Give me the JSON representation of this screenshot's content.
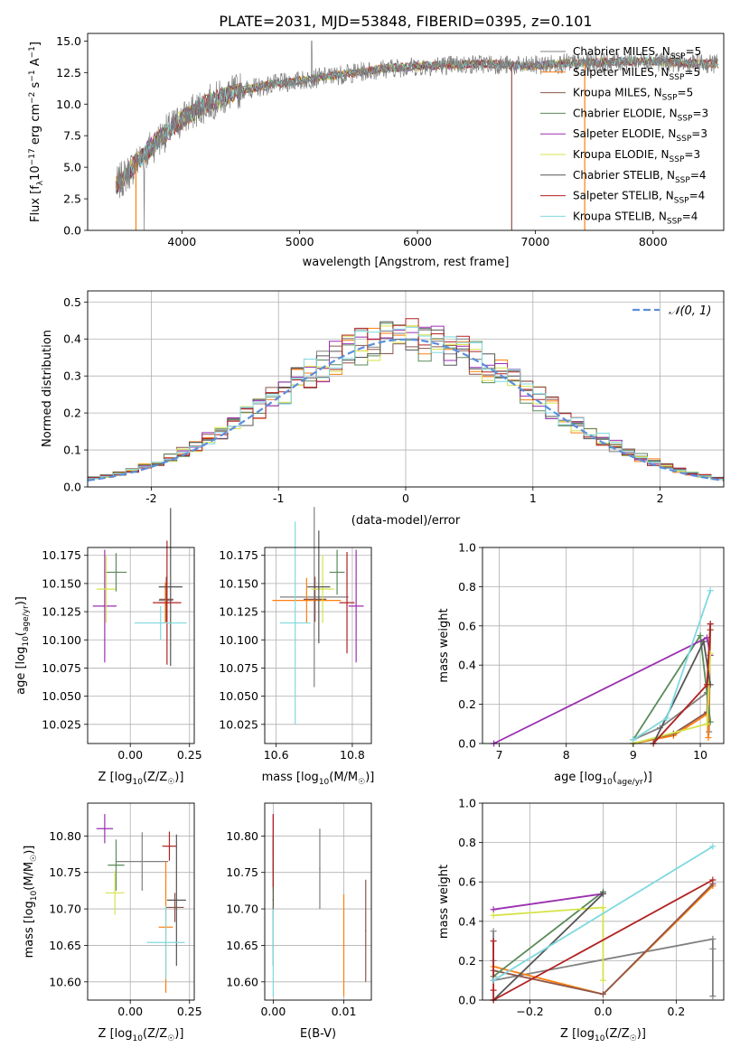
{
  "figure_title": "PLATE=2031, MJD=53848, FIBERID=0395, z=0.101",
  "colors": {
    "models": [
      "#808080",
      "#ff7f0e",
      "#8c564b",
      "#5a8a5a",
      "#9b2fb0",
      "#d6e34a",
      "#555555",
      "#b22222",
      "#7fd9df"
    ],
    "normal": "#5b8fdc",
    "grid": "#b0b0b0"
  },
  "legend_spectrum": [
    {
      "name": "Chabrier MILES, N",
      "sub": "SSP",
      "tail": "=5"
    },
    {
      "name": "Salpeter MILES, N",
      "sub": "SSP",
      "tail": "=5"
    },
    {
      "name": "Kroupa MILES, N",
      "sub": "SSP",
      "tail": "=5"
    },
    {
      "name": "Chabrier ELODIE, N",
      "sub": "SSP",
      "tail": "=3"
    },
    {
      "name": "Salpeter ELODIE, N",
      "sub": "SSP",
      "tail": "=3"
    },
    {
      "name": "Kroupa ELODIE, N",
      "sub": "SSP",
      "tail": "=3"
    },
    {
      "name": "Chabrier STELIB, N",
      "sub": "SSP",
      "tail": "=4"
    },
    {
      "name": "Salpeter STELIB, N",
      "sub": "SSP",
      "tail": "=4"
    },
    {
      "name": "Kroupa STELIB, N",
      "sub": "SSP",
      "tail": "=4"
    }
  ],
  "legend_hist": "𝒩(0, 1)",
  "chart_data": [
    {
      "id": "spectrum",
      "type": "line",
      "ylabel_parts": [
        "Flux [f",
        "λ",
        "10",
        "−17",
        " erg cm",
        "−2",
        " s",
        "−1",
        " A",
        "−1",
        "]"
      ],
      "xlabel": "wavelength [Angstrom, rest frame]",
      "xlim": [
        3200,
        8600
      ],
      "ylim": [
        0,
        15.6
      ],
      "xticks": [
        4000,
        5000,
        6000,
        7000,
        8000
      ],
      "yticks": [
        0.0,
        2.5,
        5.0,
        7.5,
        10.0,
        12.5,
        15.0
      ],
      "continuum_x": [
        3450,
        3600,
        3800,
        4000,
        4200,
        4500,
        4800,
        5100,
        5400,
        5700,
        6000,
        6300,
        6600,
        6900,
        7200,
        7500,
        7800,
        8000,
        8200,
        8400
      ],
      "continuum_y": [
        3.6,
        5.2,
        7.2,
        8.8,
        10.0,
        11.1,
        11.6,
        12.0,
        12.4,
        12.8,
        13.0,
        13.1,
        13.2,
        13.0,
        13.2,
        13.3,
        13.4,
        13.4,
        13.3,
        13.2
      ]
    },
    {
      "id": "residual_hist",
      "type": "histogram",
      "xlabel": "(data-model)/error",
      "ylabel": "Normed distribution",
      "xlim": [
        -2.5,
        2.5
      ],
      "ylim": [
        0,
        0.53
      ],
      "xticks": [
        -2,
        -1,
        0,
        1,
        2
      ],
      "yticks": [
        0.0,
        0.1,
        0.2,
        0.3,
        0.4,
        0.5
      ],
      "bin_width": 0.1
    },
    {
      "id": "age_vs_Z",
      "type": "scatter",
      "xlabel_parts": [
        "Z [log",
        "10",
        "(Z/Z",
        "☉",
        ")]"
      ],
      "ylabel_parts": [
        "age  [log",
        "10",
        "(",
        "age/yr",
        ")]"
      ],
      "xlim": [
        -0.18,
        0.27
      ],
      "ylim": [
        10.008,
        10.182
      ],
      "xticks": [
        0.0,
        0.25
      ],
      "yticks": [
        10.025,
        10.05,
        10.075,
        10.1,
        10.125,
        10.15,
        10.175
      ],
      "points": [
        {
          "x": 0.15,
          "y": 10.135,
          "ex": 0.03,
          "ey": 0.015
        },
        {
          "x": 0.148,
          "y": 10.133,
          "ex": 0.025,
          "ey": 0.018
        },
        {
          "x": 0.152,
          "y": 10.136,
          "ex": 0.03,
          "ey": 0.02
        },
        {
          "x": -0.06,
          "y": 10.16,
          "ex": 0.045,
          "ey": 0.017
        },
        {
          "x": -0.108,
          "y": 10.13,
          "ex": 0.05,
          "ey": 0.05
        },
        {
          "x": -0.102,
          "y": 10.145,
          "ex": 0.04,
          "ey": 0.03
        },
        {
          "x": 0.17,
          "y": 10.147,
          "ex": 0.05,
          "ey": 0.07
        },
        {
          "x": 0.155,
          "y": 10.133,
          "ex": 0.06,
          "ey": 0.055
        },
        {
          "x": 0.128,
          "y": 10.115,
          "ex": 0.11,
          "ey": 0.015
        }
      ]
    },
    {
      "id": "age_vs_mass",
      "type": "scatter",
      "xlabel_parts": [
        "mass [log",
        "10",
        "(M/M",
        "☉",
        ")]"
      ],
      "xlim": [
        10.57,
        10.85
      ],
      "ylim": [
        10.008,
        10.182
      ],
      "xticks": [
        10.6,
        10.8
      ],
      "yticks": [
        10.025,
        10.05,
        10.075,
        10.1,
        10.125,
        10.15,
        10.175
      ],
      "points": [
        {
          "x": 10.7,
          "y": 10.138,
          "ex": 0.09,
          "ey": 0.08
        },
        {
          "x": 10.68,
          "y": 10.135,
          "ex": 0.09,
          "ey": 0.02
        },
        {
          "x": 10.702,
          "y": 10.136,
          "ex": 0.03,
          "ey": 0.02
        },
        {
          "x": 10.76,
          "y": 10.16,
          "ex": 0.02,
          "ey": 0.02
        },
        {
          "x": 10.81,
          "y": 10.13,
          "ex": 0.02,
          "ey": 0.05
        },
        {
          "x": 10.722,
          "y": 10.145,
          "ex": 0.03,
          "ey": 0.03
        },
        {
          "x": 10.712,
          "y": 10.147,
          "ex": 0.03,
          "ey": 0.05
        },
        {
          "x": 10.786,
          "y": 10.133,
          "ex": 0.02,
          "ey": 0.045
        },
        {
          "x": 10.65,
          "y": 10.115,
          "ex": 0.04,
          "ey": 0.09
        }
      ]
    },
    {
      "id": "weight_vs_age",
      "type": "line",
      "xlabel_parts": [
        "age  [log",
        "10",
        "(",
        "age/yr",
        ")]"
      ],
      "ylabel": "mass weight",
      "xlim": [
        6.75,
        10.35
      ],
      "ylim": [
        0,
        1
      ],
      "xticks": [
        7,
        8,
        9,
        10
      ],
      "yticks": [
        0.0,
        0.2,
        0.4,
        0.6,
        0.8,
        1.0
      ],
      "series": [
        {
          "x": [
            9.0,
            9.4,
            10.1,
            10.13,
            10.15
          ],
          "y": [
            0.02,
            0.08,
            0.26,
            0.06,
            0.61
          ]
        },
        {
          "x": [
            9.0,
            9.6,
            10.1,
            10.12,
            10.15
          ],
          "y": [
            0.0,
            0.04,
            0.15,
            0.03,
            0.58
          ]
        },
        {
          "x": [
            9.0,
            9.6,
            10.1,
            10.15
          ],
          "y": [
            0.0,
            0.05,
            0.16,
            0.58
          ]
        },
        {
          "x": [
            9.0,
            10.0,
            10.15
          ],
          "y": [
            0.02,
            0.55,
            0.11
          ]
        },
        {
          "x": [
            6.92,
            10.1,
            10.15
          ],
          "y": [
            0.0,
            0.54,
            0.45
          ]
        },
        {
          "x": [
            9.0,
            10.1,
            10.15
          ],
          "y": [
            0.0,
            0.1,
            0.46
          ]
        },
        {
          "x": [
            9.3,
            10.05,
            10.15
          ],
          "y": [
            0.0,
            0.52,
            0.3
          ]
        },
        {
          "x": [
            9.3,
            10.1,
            10.15
          ],
          "y": [
            0.0,
            0.3,
            0.61
          ]
        },
        {
          "x": [
            9.0,
            9.5,
            10.15
          ],
          "y": [
            0.02,
            0.13,
            0.78
          ]
        }
      ]
    },
    {
      "id": "mass_vs_Z",
      "type": "scatter",
      "xlabel_parts": [
        "Z [log",
        "10",
        "(Z/Z",
        "☉",
        ")]"
      ],
      "ylabel_parts": [
        "mass [log",
        "10",
        "(M/M",
        "☉",
        ")]"
      ],
      "xlim": [
        -0.18,
        0.27
      ],
      "ylim": [
        10.575,
        10.845
      ],
      "xticks": [
        0.0,
        0.25
      ],
      "yticks": [
        10.6,
        10.65,
        10.7,
        10.75,
        10.8
      ],
      "points": [
        {
          "x": 0.05,
          "y": 10.765,
          "ex": 0.11,
          "ey": 0.04
        },
        {
          "x": 0.15,
          "y": 10.675,
          "ex": 0.03,
          "ey": 0.09
        },
        {
          "x": 0.188,
          "y": 10.702,
          "ex": 0.038,
          "ey": 0.02
        },
        {
          "x": -0.06,
          "y": 10.76,
          "ex": 0.035,
          "ey": 0.035
        },
        {
          "x": -0.108,
          "y": 10.81,
          "ex": 0.035,
          "ey": 0.02
        },
        {
          "x": -0.065,
          "y": 10.722,
          "ex": 0.04,
          "ey": 0.03
        },
        {
          "x": 0.195,
          "y": 10.712,
          "ex": 0.04,
          "ey": 0.09
        },
        {
          "x": 0.165,
          "y": 10.786,
          "ex": 0.03,
          "ey": 0.02
        },
        {
          "x": 0.15,
          "y": 10.654,
          "ex": 0.08,
          "ey": 0.05
        }
      ]
    },
    {
      "id": "mass_vs_EBV",
      "type": "scatter",
      "xlabel": "E(B-V)",
      "xlim": [
        -0.0012,
        0.0139
      ],
      "ylim": [
        10.575,
        10.845
      ],
      "xticks": [
        0.0,
        0.01
      ],
      "yticks": [
        10.6,
        10.65,
        10.7,
        10.75,
        10.8
      ],
      "points": [
        {
          "x": 0.0066,
          "y": 10.755,
          "ex": 0,
          "ey": 0.055
        },
        {
          "x": 0.01,
          "y": 10.65,
          "ex": 0,
          "ey": 0.07
        },
        {
          "x": 0.0131,
          "y": 10.67,
          "ex": 0,
          "ey": 0.07
        },
        {
          "x": 0.0,
          "y": 10.76,
          "ex": 0,
          "ey": 0.035
        },
        {
          "x": 0.0,
          "y": 10.79,
          "ex": 0,
          "ey": 0.04
        },
        {
          "x": 0.0,
          "y": 10.72,
          "ex": 0,
          "ey": 0.03
        },
        {
          "x": 0.0,
          "y": 10.712,
          "ex": 0,
          "ey": 0.09
        },
        {
          "x": 0.0,
          "y": 10.78,
          "ex": 0,
          "ey": 0.05
        },
        {
          "x": 0.0,
          "y": 10.64,
          "ex": 0,
          "ey": 0.06
        }
      ]
    },
    {
      "id": "weight_vs_Z",
      "type": "line",
      "xlabel_parts": [
        "Z [log",
        "10",
        "(Z/Z",
        "☉",
        ")]"
      ],
      "ylabel": "mass weight",
      "xlim": [
        -0.33,
        0.33
      ],
      "ylim": [
        0,
        1
      ],
      "xticks": [
        -0.2,
        0.0,
        0.2
      ],
      "yticks": [
        0.0,
        0.2,
        0.4,
        0.6,
        0.8,
        1.0
      ],
      "series": [
        {
          "x": [
            -0.3,
            -0.3,
            -0.3,
            0.3,
            0.3,
            0.3
          ],
          "y": [
            0.35,
            0.2,
            0.1,
            0.31,
            0.26,
            0.02
          ]
        },
        {
          "x": [
            -0.3,
            0.0,
            0.3
          ],
          "y": [
            0.17,
            0.03,
            0.58
          ]
        },
        {
          "x": [
            -0.3,
            0.0,
            0.3
          ],
          "y": [
            0.15,
            0.03,
            0.59
          ]
        },
        {
          "x": [
            -0.3,
            0.0
          ],
          "y": [
            0.12,
            0.55
          ]
        },
        {
          "x": [
            -0.3,
            0.0
          ],
          "y": [
            0.46,
            0.54
          ]
        },
        {
          "x": [
            -0.3,
            0.0,
            0.0
          ],
          "y": [
            0.43,
            0.47,
            0.1
          ]
        },
        {
          "x": [
            -0.3,
            0.0
          ],
          "y": [
            0.0,
            0.54
          ]
        },
        {
          "x": [
            -0.3,
            -0.3,
            -0.3,
            0.3
          ],
          "y": [
            0.3,
            0.05,
            0.0,
            0.61
          ]
        },
        {
          "x": [
            -0.3,
            0.3
          ],
          "y": [
            0.1,
            0.78
          ]
        }
      ]
    }
  ]
}
